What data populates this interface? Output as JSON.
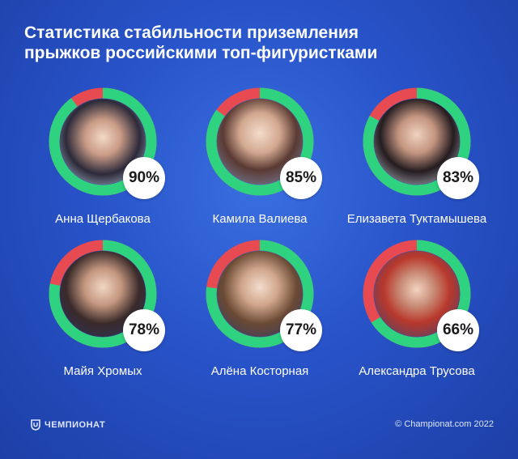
{
  "header": {
    "title_line1": "Статистика стабильности приземления",
    "title_line2": "прыжков российскими топ-фигуристками"
  },
  "colors": {
    "stable": "#2fd27e",
    "unstable": "#e84a52",
    "background": "#2853c9"
  },
  "chart_data": {
    "type": "pie",
    "title": "Статистика стабильности приземления прыжков российскими топ-фигуристками",
    "series": [
      {
        "name": "Анна Щербакова",
        "value": 90,
        "label": "90%"
      },
      {
        "name": "Камила Валиева",
        "value": 85,
        "label": "85%"
      },
      {
        "name": "Елизавета Туктамышева",
        "value": 83,
        "label": "83%"
      },
      {
        "name": "Майя Хромых",
        "value": 78,
        "label": "78%"
      },
      {
        "name": "Алёна Косторная",
        "value": 77,
        "label": "77%"
      },
      {
        "name": "Александра Трусова",
        "value": 66,
        "label": "66%"
      }
    ]
  },
  "footer": {
    "logo_text": "ЧЕМПИОНАТ",
    "copyright": "© Championat.com 2022"
  }
}
